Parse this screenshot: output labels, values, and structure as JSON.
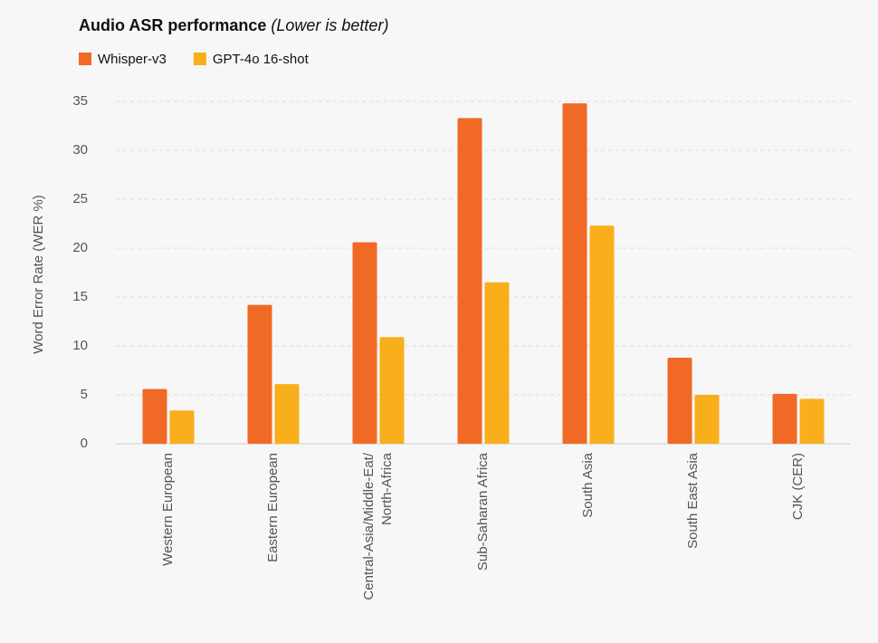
{
  "chart_data": {
    "type": "bar",
    "title": "Audio ASR performance",
    "title_note": "(Lower is better)",
    "y_label": "Word Error Rate (WER %)",
    "categories": [
      "Western European",
      "Eastern European",
      [
        "Central-Asia/Middle-Eat/",
        "North-Africa"
      ],
      "Sub-Saharan Africa",
      "South Asia",
      "South East Asia",
      "CJK (CER)"
    ],
    "series": [
      {
        "name": "Whisper-v3",
        "color": "#f06a26",
        "values": [
          5.6,
          14.2,
          20.6,
          33.3,
          34.8,
          8.8,
          5.1
        ]
      },
      {
        "name": "GPT-4o 16-shot",
        "color": "#f9ae1b",
        "values": [
          3.4,
          6.1,
          10.9,
          16.5,
          22.3,
          5.0,
          4.6
        ]
      }
    ],
    "ylim": [
      0,
      35
    ],
    "yticks": [
      0,
      5,
      10,
      15,
      20,
      25,
      30,
      35
    ],
    "grid": true
  }
}
